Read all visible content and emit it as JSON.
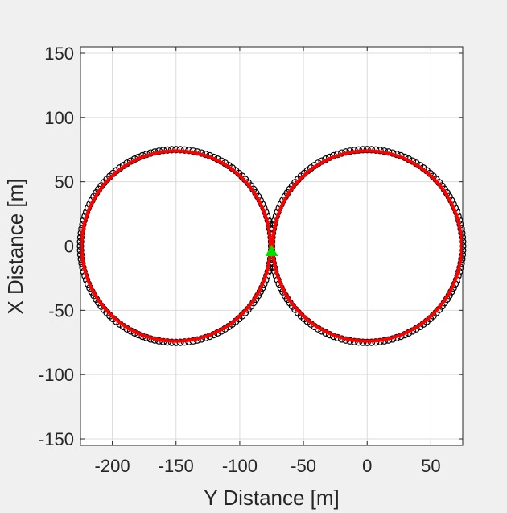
{
  "chart_data": {
    "type": "scatter",
    "title": "",
    "xlabel": "Y Distance [m]",
    "ylabel": "X Distance [m]",
    "xlim": [
      -225,
      75
    ],
    "ylim": [
      -155,
      155
    ],
    "xticks": [
      -200,
      -150,
      -100,
      -50,
      0,
      50
    ],
    "yticks": [
      -150,
      -100,
      -50,
      0,
      50,
      100,
      150
    ],
    "xtick_labels": [
      "-200",
      "-150",
      "-100",
      "-50",
      "0",
      "50"
    ],
    "ytick_labels": [
      "-150",
      "-100",
      "-50",
      "0",
      "50",
      "100",
      "150"
    ],
    "grid": true,
    "legend": "none",
    "series": [
      {
        "marker": "circle-outline",
        "color": "#000000",
        "shape": "figure-eight",
        "circles": [
          {
            "center": [
              -150,
              0
            ],
            "radius": 75
          },
          {
            "center": [
              0,
              0
            ],
            "radius": 75
          }
        ],
        "points_per_circle": 140
      },
      {
        "marker": "line",
        "color": "#ff0000",
        "shape": "figure-eight",
        "circles": [
          {
            "center": [
              -150,
              0
            ],
            "radius": 74
          },
          {
            "center": [
              0,
              0
            ],
            "radius": 74
          }
        ]
      },
      {
        "marker": "triangle",
        "color": "#00e000",
        "x": [
          -75
        ],
        "y": [
          -4
        ]
      }
    ]
  }
}
